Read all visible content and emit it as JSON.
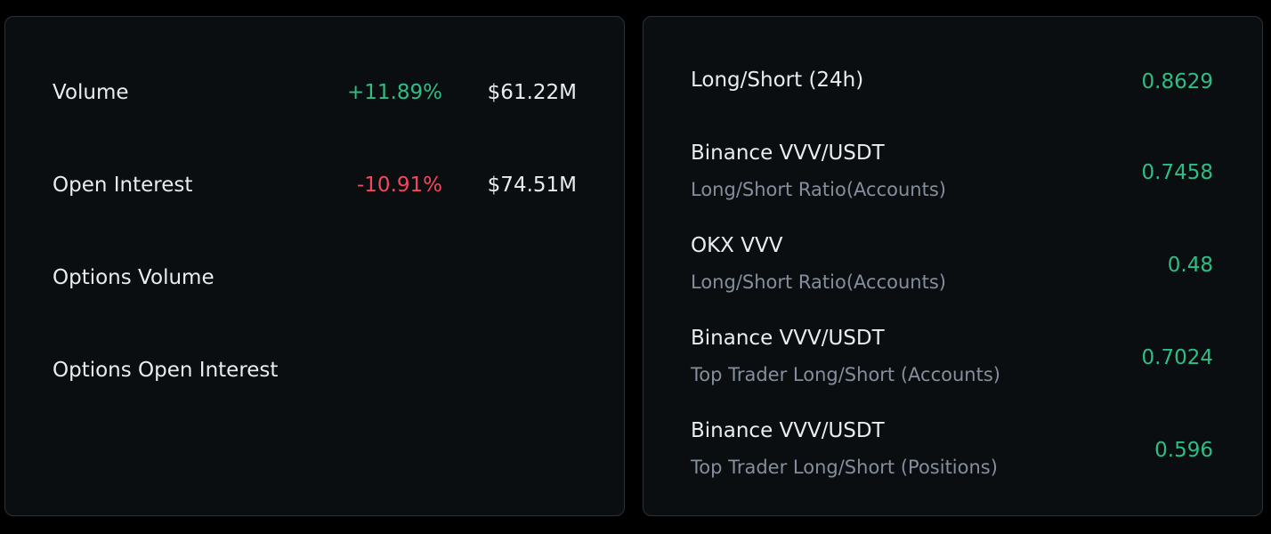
{
  "market": {
    "rows": [
      {
        "label": "Volume",
        "change": "+11.89%",
        "change_color": "#2ebd85",
        "amount": "$61.22M"
      },
      {
        "label": "Open Interest",
        "change": "-10.91%",
        "change_color": "#f6465d",
        "amount": "$74.51M"
      },
      {
        "label": "Options Volume",
        "change": "",
        "amount": ""
      },
      {
        "label": "Options Open Interest",
        "change": "",
        "amount": ""
      }
    ]
  },
  "ratios": {
    "header": {
      "label": "Long/Short (24h)",
      "value": "0.8629"
    },
    "rows": [
      {
        "title": "Binance VVV/USDT",
        "subtitle": "Long/Short Ratio(Accounts)",
        "value": "0.7458"
      },
      {
        "title": "OKX VVV",
        "subtitle": "Long/Short Ratio(Accounts)",
        "value": "0.48"
      },
      {
        "title": "Binance VVV/USDT",
        "subtitle": "Top Trader Long/Short (Accounts)",
        "value": "0.7024"
      },
      {
        "title": "Binance VVV/USDT",
        "subtitle": "Top Trader Long/Short (Positions)",
        "value": "0.596"
      }
    ],
    "value_color": "#2ebd85"
  }
}
